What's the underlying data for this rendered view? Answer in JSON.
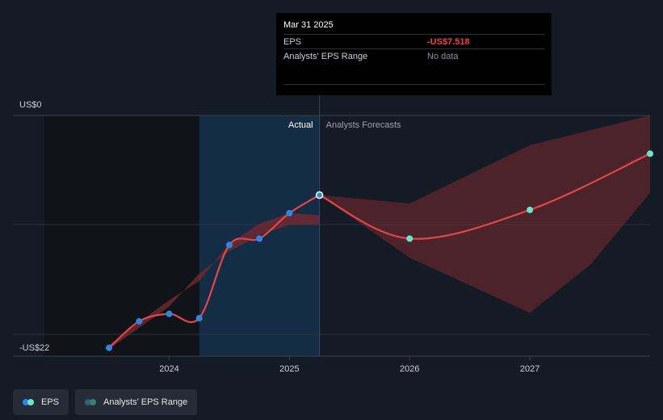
{
  "chart_data": {
    "type": "line",
    "ylabel_top": "US$0",
    "ylabel_bottom": "-US$22",
    "ylim": [
      -22,
      0
    ],
    "x_ticks": [
      "2024",
      "2025",
      "2026",
      "2027"
    ],
    "x_tick_values": [
      2024.0,
      2025.0,
      2026.0,
      2027.0
    ],
    "x_range": [
      2022.7,
      2028.0
    ],
    "region_labels": {
      "actual": "Actual",
      "forecast": "Analysts Forecasts"
    },
    "divider_x": 2025.25,
    "series": [
      {
        "name": "EPS",
        "color": "#e0474c",
        "actual": [
          {
            "x": 2023.5,
            "y": -21.9
          },
          {
            "x": 2023.75,
            "y": -19.4
          },
          {
            "x": 2024.0,
            "y": -18.7
          },
          {
            "x": 2024.25,
            "y": -19.1
          },
          {
            "x": 2024.5,
            "y": -12.2
          },
          {
            "x": 2024.75,
            "y": -11.6
          },
          {
            "x": 2025.0,
            "y": -9.2
          },
          {
            "x": 2025.25,
            "y": -7.5
          }
        ],
        "forecast": [
          {
            "x": 2025.25,
            "y": -7.5
          },
          {
            "x": 2026.0,
            "y": -11.6
          },
          {
            "x": 2027.0,
            "y": -8.9
          },
          {
            "x": 2028.0,
            "y": -3.6
          }
        ]
      }
    ],
    "range_band": {
      "name": "Analysts' EPS Range",
      "actual_upper": [
        {
          "x": 2023.5,
          "y": -21.6
        },
        {
          "x": 2024.0,
          "y": -17.4
        },
        {
          "x": 2024.25,
          "y": -15.6
        },
        {
          "x": 2024.5,
          "y": -12.1
        },
        {
          "x": 2024.75,
          "y": -10.2
        },
        {
          "x": 2025.0,
          "y": -9.2
        },
        {
          "x": 2025.25,
          "y": -9.4
        }
      ],
      "actual_lower": [
        {
          "x": 2025.25,
          "y": -10.3
        },
        {
          "x": 2025.0,
          "y": -10.3
        },
        {
          "x": 2024.75,
          "y": -11.3
        },
        {
          "x": 2024.5,
          "y": -12.8
        },
        {
          "x": 2024.25,
          "y": -14.9
        },
        {
          "x": 2024.0,
          "y": -18.0
        },
        {
          "x": 2023.5,
          "y": -22.0
        }
      ],
      "forecast_upper": [
        {
          "x": 2025.25,
          "y": -7.5
        },
        {
          "x": 2026.0,
          "y": -8.3
        },
        {
          "x": 2027.0,
          "y": -2.8
        },
        {
          "x": 2028.0,
          "y": 0.0
        }
      ],
      "forecast_lower": [
        {
          "x": 2028.0,
          "y": -7.3
        },
        {
          "x": 2027.5,
          "y": -14.1
        },
        {
          "x": 2027.0,
          "y": -18.6
        },
        {
          "x": 2026.0,
          "y": -13.4
        },
        {
          "x": 2025.25,
          "y": -7.5
        }
      ]
    },
    "colors": {
      "line": "#e0474c",
      "actual_dot": "#2f86e0",
      "forecast_dot": "#6ee2c8",
      "band": "#7a2a30",
      "actual_highlight": "#14304a",
      "past_shade": "#101419"
    }
  },
  "tooltip": {
    "date": "Mar 31 2025",
    "rows": [
      {
        "label": "EPS",
        "value": "-US$7.518"
      },
      {
        "label": "Analysts' EPS Range",
        "value": "No data"
      }
    ]
  },
  "legend": {
    "eps_label": "EPS",
    "range_label": "Analysts' EPS Range"
  }
}
